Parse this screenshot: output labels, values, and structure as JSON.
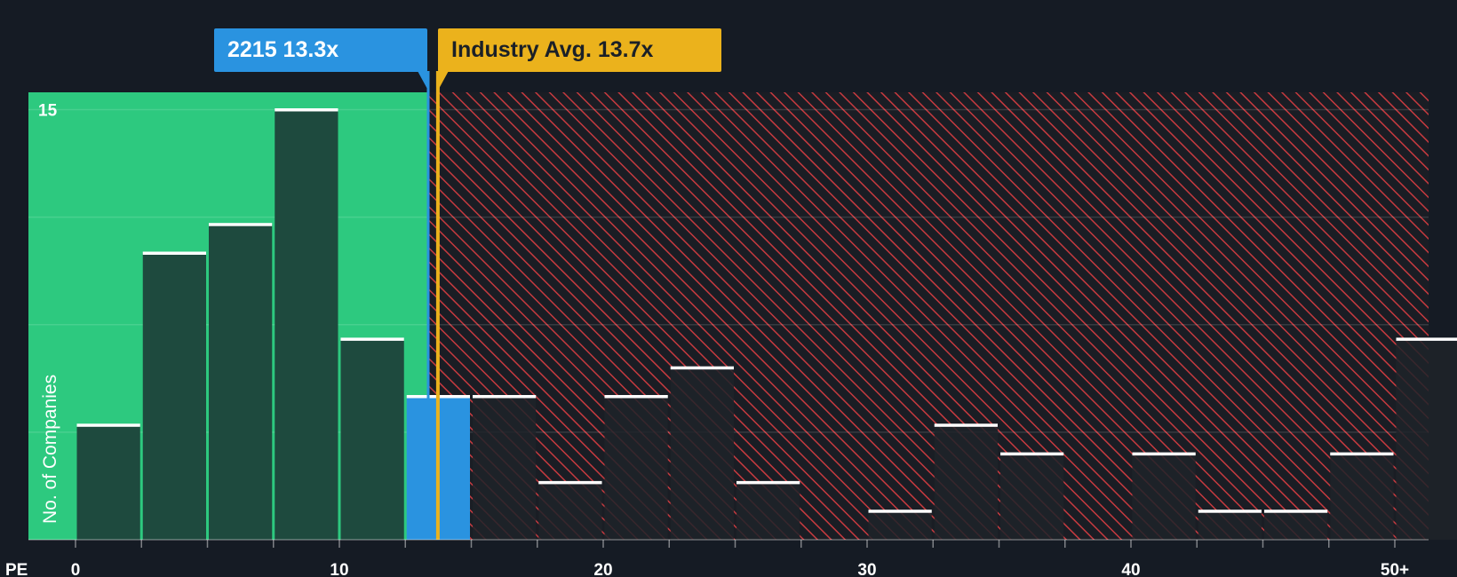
{
  "chart_data": {
    "type": "bar",
    "title": "",
    "xlabel": "PE",
    "ylabel": "No. of Companies",
    "xlim": [
      -2.5,
      51.25
    ],
    "ylim": [
      0,
      15.5
    ],
    "bin_width": 2.5,
    "x_ticks": [
      {
        "value": 0,
        "label": "0"
      },
      {
        "value": 10,
        "label": "10"
      },
      {
        "value": 20,
        "label": "20"
      },
      {
        "value": 30,
        "label": "30"
      },
      {
        "value": 40,
        "label": "40"
      },
      {
        "value": 50,
        "label": "50+"
      }
    ],
    "y_ticks": [
      {
        "value": 15,
        "label": "15"
      }
    ],
    "gridlines": [
      3.75,
      7.5,
      11.25,
      15
    ],
    "bins": [
      {
        "x0": 0,
        "x1": 2.5,
        "count": 4
      },
      {
        "x0": 2.5,
        "x1": 5,
        "count": 10
      },
      {
        "x0": 5,
        "x1": 7.5,
        "count": 11
      },
      {
        "x0": 7.5,
        "x1": 10,
        "count": 15
      },
      {
        "x0": 10,
        "x1": 12.5,
        "count": 7
      },
      {
        "x0": 12.5,
        "x1": 15,
        "count": 5,
        "highlight": true
      },
      {
        "x0": 15,
        "x1": 17.5,
        "count": 5
      },
      {
        "x0": 17.5,
        "x1": 20,
        "count": 2
      },
      {
        "x0": 20,
        "x1": 22.5,
        "count": 5
      },
      {
        "x0": 22.5,
        "x1": 25,
        "count": 6
      },
      {
        "x0": 25,
        "x1": 27.5,
        "count": 2
      },
      {
        "x0": 27.5,
        "x1": 30,
        "count": 0
      },
      {
        "x0": 30,
        "x1": 32.5,
        "count": 1
      },
      {
        "x0": 32.5,
        "x1": 35,
        "count": 4
      },
      {
        "x0": 35,
        "x1": 37.5,
        "count": 3
      },
      {
        "x0": 37.5,
        "x1": 40,
        "count": 0
      },
      {
        "x0": 40,
        "x1": 42.5,
        "count": 3
      },
      {
        "x0": 42.5,
        "x1": 45,
        "count": 1
      },
      {
        "x0": 45,
        "x1": 47.5,
        "count": 1
      },
      {
        "x0": 47.5,
        "x1": 50,
        "count": 3
      },
      {
        "x0": 50,
        "x1": 52.5,
        "count": 7
      }
    ],
    "company": {
      "ticker": "2215",
      "pe": 13.3,
      "label": "2215 13.3x"
    },
    "industry": {
      "pe": 13.7,
      "label": "Industry Avg. 13.7x"
    },
    "colors": {
      "background": "#151b24",
      "undervalued_zone": "#2dc97f",
      "overvalued_hatch": "#c73a3f",
      "bar_under": "#1e4a3e",
      "bar_over": "#1f2329",
      "bar_highlight": "#2a93e0",
      "bar_cap": "#ffffff",
      "company_line": "#2a93e0",
      "industry_line": "#ebb21c"
    }
  }
}
